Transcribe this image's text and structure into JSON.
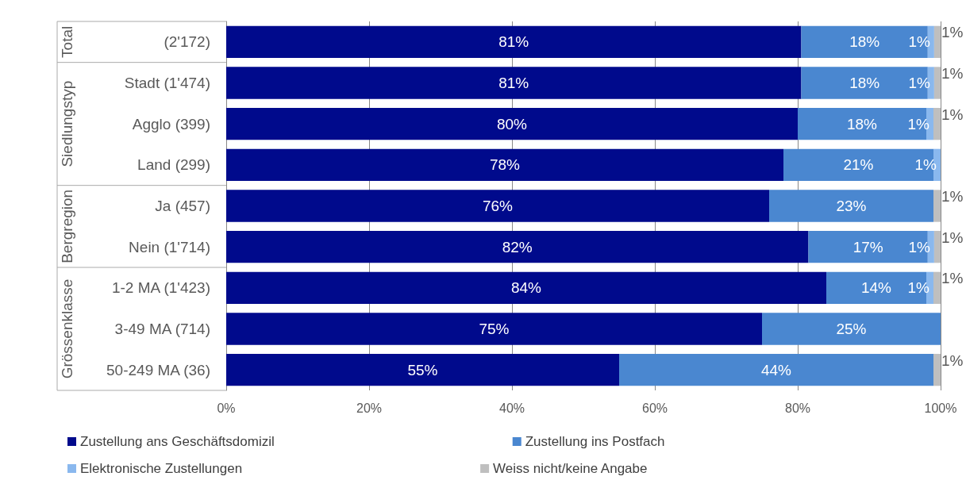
{
  "chart_data": {
    "type": "bar",
    "orientation": "horizontal",
    "stacked": true,
    "grid": "x",
    "legend": "bottom",
    "categories": [
      "(2'172)",
      "Stadt (1'474)",
      "Agglo (399)",
      "Land (299)",
      "Ja (457)",
      "Nein (1'714)",
      "1-2 MA (1'423)",
      "3-49 MA (714)",
      "50-249 MA (36)"
    ],
    "series": [
      {
        "name": "Zustellung ans Geschäftsdomizil",
        "color": "#000a8c",
        "values": [
          80.5,
          80.5,
          80,
          78,
          76,
          81.5,
          84,
          75,
          55
        ],
        "value_labels": [
          "81%",
          "81%",
          "80%",
          "78%",
          "76%",
          "82%",
          "84%",
          "75%",
          "55%"
        ]
      },
      {
        "name": "Zustellung ins Postfach",
        "color": "#4a87d0",
        "values": [
          17.7,
          17.7,
          18,
          21,
          23,
          16.7,
          14,
          25,
          44
        ],
        "value_labels": [
          "18%",
          "18%",
          "18%",
          "21%",
          "23%",
          "17%",
          "14%",
          "25%",
          "44%"
        ]
      },
      {
        "name": "Elektronische Zustellungen",
        "color": "#8ab8ee",
        "values": [
          0.9,
          0.9,
          1,
          1,
          null,
          0.9,
          1,
          null,
          null
        ],
        "value_labels": [
          "1%",
          "1%",
          "1%",
          "1%",
          null,
          "1%",
          "1%",
          null,
          null
        ]
      },
      {
        "name": "Weiss nicht/keine Angabe",
        "color": "#bfbfbf",
        "values": [
          0.9,
          0.9,
          1,
          null,
          1,
          0.9,
          1,
          null,
          1
        ],
        "value_labels": [
          "1%",
          "1%",
          "1%",
          null,
          "1%",
          "1%",
          "1%",
          null,
          "1%"
        ]
      }
    ],
    "xlim": [
      0,
      100
    ],
    "xticks": [
      {
        "value": 0,
        "label": "0%"
      },
      {
        "value": 20,
        "label": "20%"
      },
      {
        "value": 40,
        "label": "40%"
      },
      {
        "value": 60,
        "label": "60%"
      },
      {
        "value": 80,
        "label": "80%"
      },
      {
        "value": 100,
        "label": "100%"
      }
    ],
    "annotations": [
      "Total",
      "Siedlungstyp",
      "Bergregion",
      "Grössenklasse"
    ]
  }
}
